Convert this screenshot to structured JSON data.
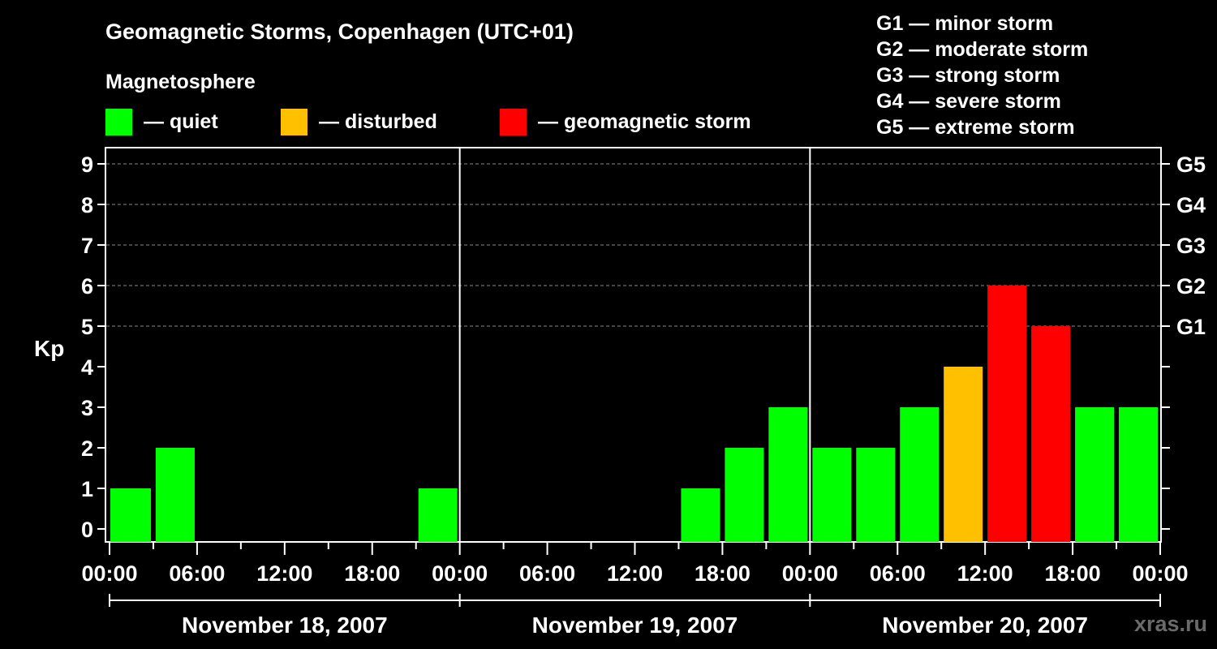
{
  "chart_data": {
    "type": "bar",
    "title": "Geomagnetic Storms, Copenhagen (UTC+01)",
    "ylabel": "Kp",
    "ylim": [
      0,
      9
    ],
    "yticks": [
      "0",
      "1",
      "2",
      "3",
      "4",
      "5",
      "6",
      "7",
      "8",
      "9"
    ],
    "storm_levels": [
      {
        "kp": 5,
        "label": "G1"
      },
      {
        "kp": 6,
        "label": "G2"
      },
      {
        "kp": 7,
        "label": "G3"
      },
      {
        "kp": 8,
        "label": "G4"
      },
      {
        "kp": 9,
        "label": "G5"
      }
    ],
    "xticks": [
      "00:00",
      "06:00",
      "12:00",
      "18:00",
      "00:00",
      "06:00",
      "12:00",
      "18:00",
      "00:00",
      "06:00",
      "12:00",
      "18:00",
      "00:00"
    ],
    "days": [
      "November 18, 2007",
      "November 19, 2007",
      "November 20, 2007"
    ],
    "bar_hours": [
      0,
      3,
      6,
      9,
      12,
      15,
      18,
      21,
      24,
      27,
      30,
      33,
      36,
      39,
      42,
      45,
      48,
      51,
      54,
      57,
      60,
      63,
      66,
      69
    ],
    "values": [
      1,
      2,
      null,
      null,
      null,
      null,
      null,
      1,
      null,
      null,
      null,
      null,
      null,
      1,
      2,
      3,
      2,
      2,
      3,
      4,
      6,
      5,
      3,
      3
    ],
    "first_bar_value": 1,
    "colors": {
      "quiet": "#00ff00",
      "disturbed": "#ffc000",
      "storm": "#ff0000"
    },
    "legend": {
      "heading": "Magnetosphere",
      "items": [
        {
          "label": "— quiet",
          "color": "#00ff00"
        },
        {
          "label": "— disturbed",
          "color": "#ffc000"
        },
        {
          "label": "— geomagnetic storm",
          "color": "#ff0000"
        }
      ]
    },
    "scale_legend": [
      "G1 — minor storm",
      "G2 — moderate storm",
      "G3 — strong storm",
      "G4 — severe storm",
      "G5 — extreme storm"
    ],
    "watermark": "xras.ru"
  }
}
